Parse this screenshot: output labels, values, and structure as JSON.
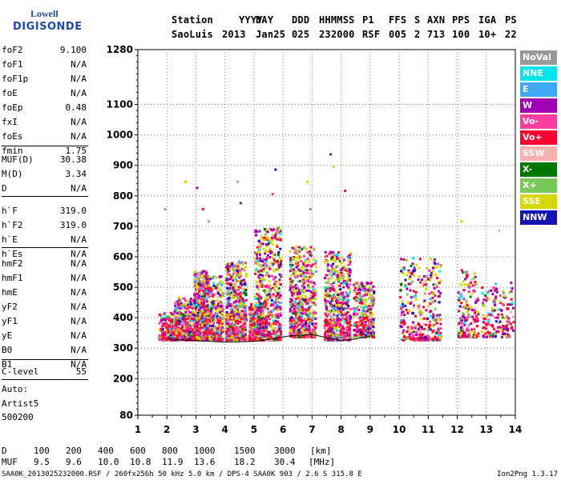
{
  "logo": {
    "brand_top": "Lowell",
    "brand_bottom": "DIGISONDE"
  },
  "header": {
    "labels": [
      "Station",
      "YYYY",
      "DAY",
      "DDD",
      "HHMMSS",
      "P1",
      "FFS",
      "S",
      "AXN",
      "PPS",
      "IGA",
      "PS"
    ],
    "values": [
      "SaoLuis",
      "2013",
      "Jan25",
      "025",
      "232000",
      "RSF",
      "005",
      "2",
      "713",
      "100",
      "10+",
      "22"
    ]
  },
  "params": [
    {
      "label": "foF2",
      "value": "9.100"
    },
    {
      "label": "foF1",
      "value": "N/A"
    },
    {
      "label": "foF1p",
      "value": "N/A"
    },
    {
      "label": "foE",
      "value": "N/A"
    },
    {
      "label": "foEp",
      "value": "0.48"
    },
    {
      "label": "fxI",
      "value": "N/A"
    },
    {
      "label": "foEs",
      "value": "N/A"
    },
    {
      "label": "fmin",
      "value": "1.75"
    },
    {
      "label": "MUF(D)",
      "value": "30.38"
    },
    {
      "label": "M(D)",
      "value": "3.34"
    },
    {
      "label": "D",
      "value": "N/A"
    },
    {
      "label": "h`F",
      "value": "319.0"
    },
    {
      "label": "h`F2",
      "value": "319.0"
    },
    {
      "label": "h`E",
      "value": "N/A"
    },
    {
      "label": "h`Es",
      "value": "N/A"
    },
    {
      "label": "hmF2",
      "value": "N/A"
    },
    {
      "label": "hmF1",
      "value": "N/A"
    },
    {
      "label": "hmE",
      "value": "N/A"
    },
    {
      "label": "yF2",
      "value": "N/A"
    },
    {
      "label": "yF1",
      "value": "N/A"
    },
    {
      "label": "yE",
      "value": "N/A"
    },
    {
      "label": "B0",
      "value": "N/A"
    },
    {
      "label": "B1",
      "value": "N/A"
    },
    {
      "label": "C-level",
      "value": "55"
    }
  ],
  "auto": {
    "line1": "Auto:",
    "line2": "Artist5",
    "line3": "500200"
  },
  "legend": [
    {
      "label": "NoVal",
      "color": "#999999"
    },
    {
      "label": "NNE",
      "color": "#00e5ee"
    },
    {
      "label": "E",
      "color": "#3fa9f5"
    },
    {
      "label": "W",
      "color": "#a000b4"
    },
    {
      "label": "Vo-",
      "color": "#ff3ca0"
    },
    {
      "label": "Vo+",
      "color": "#ff0030"
    },
    {
      "label": "SSW",
      "color": "#f5b0b0"
    },
    {
      "label": "X-",
      "color": "#007800"
    },
    {
      "label": "X+",
      "color": "#78c85a"
    },
    {
      "label": "SSE",
      "color": "#d6d600"
    },
    {
      "label": "NNW",
      "color": "#1414b4"
    }
  ],
  "footer": {
    "d_label": "D",
    "d_values": [
      "100",
      "200",
      "400",
      "600",
      "800",
      "1000",
      "1500",
      "3000"
    ],
    "d_unit": "[km]",
    "muf_label": "MUF",
    "muf_values": [
      "9.5",
      "9.6",
      "10.0",
      "10.8",
      "11.9",
      "13.6",
      "18.2",
      "30.4"
    ],
    "muf_unit": "[MHz]",
    "file_line": "SAA0K_2013025232000.RSF / 260fx256h 50 kHz 5.0 km / DPS-4 SAA0K 903 / 2.6 S 315.8 E",
    "version": "Ion2Png 1.3.17"
  },
  "chart_data": {
    "type": "scatter",
    "xlabel": "",
    "ylabel": "",
    "x_ticks": [
      1,
      2,
      3,
      4,
      5,
      6,
      7,
      8,
      9,
      10,
      11,
      12,
      13,
      14
    ],
    "xlim": [
      1,
      14
    ],
    "y_ticks": [
      80,
      200,
      300,
      400,
      500,
      600,
      700,
      800,
      900,
      1000,
      1100,
      1280
    ],
    "ylim": [
      80,
      1280
    ],
    "grid": true,
    "legend_position": "right",
    "clusters": [
      {
        "f": [
          1.7,
          2.2
        ],
        "h": [
          330,
          420
        ],
        "dens": "low"
      },
      {
        "f": [
          2.2,
          2.9
        ],
        "h": [
          330,
          470
        ],
        "dens": "mid"
      },
      {
        "f": [
          2.9,
          3.4
        ],
        "h": [
          330,
          560
        ],
        "dens": "high"
      },
      {
        "f": [
          3.3,
          3.9
        ],
        "h": [
          330,
          540
        ],
        "dens": "mid"
      },
      {
        "f": [
          4.0,
          4.7
        ],
        "h": [
          330,
          590
        ],
        "dens": "high"
      },
      {
        "f": [
          4.8,
          5.3
        ],
        "h": [
          330,
          450
        ],
        "dens": "mid"
      },
      {
        "f": [
          5.0,
          5.9
        ],
        "h": [
          330,
          700
        ],
        "dens": "high"
      },
      {
        "f": [
          6.2,
          7.1
        ],
        "h": [
          340,
          640
        ],
        "dens": "high"
      },
      {
        "f": [
          7.4,
          8.3
        ],
        "h": [
          330,
          620
        ],
        "dens": "high"
      },
      {
        "f": [
          8.4,
          9.1
        ],
        "h": [
          340,
          520
        ],
        "dens": "mid"
      },
      {
        "f": [
          10.0,
          11.4
        ],
        "h": [
          330,
          600
        ],
        "dens": "mid"
      },
      {
        "f": [
          12.0,
          12.7
        ],
        "h": [
          340,
          560
        ],
        "dens": "low"
      },
      {
        "f": [
          12.8,
          13.9
        ],
        "h": [
          340,
          520
        ],
        "dens": "low"
      }
    ],
    "sparse_points": [
      {
        "f": 3.0,
        "h": 830
      },
      {
        "f": 3.2,
        "h": 760
      },
      {
        "f": 3.4,
        "h": 720
      },
      {
        "f": 4.4,
        "h": 850
      },
      {
        "f": 4.5,
        "h": 780
      },
      {
        "f": 5.7,
        "h": 890
      },
      {
        "f": 5.6,
        "h": 810
      },
      {
        "f": 6.8,
        "h": 850
      },
      {
        "f": 6.9,
        "h": 760
      },
      {
        "f": 7.6,
        "h": 940
      },
      {
        "f": 7.7,
        "h": 900
      },
      {
        "f": 8.1,
        "h": 820
      },
      {
        "f": 12.1,
        "h": 720
      },
      {
        "f": 13.4,
        "h": 690
      },
      {
        "f": 1.9,
        "h": 760
      },
      {
        "f": 2.6,
        "h": 850
      }
    ],
    "trace": {
      "f": [
        2.0,
        3.0,
        4.0,
        5.0,
        5.6,
        6.2,
        7.0,
        8.0,
        8.5,
        9.0
      ],
      "h": [
        330,
        325,
        320,
        322,
        330,
        340,
        345,
        325,
        330,
        340
      ],
      "color": "#000000"
    }
  }
}
